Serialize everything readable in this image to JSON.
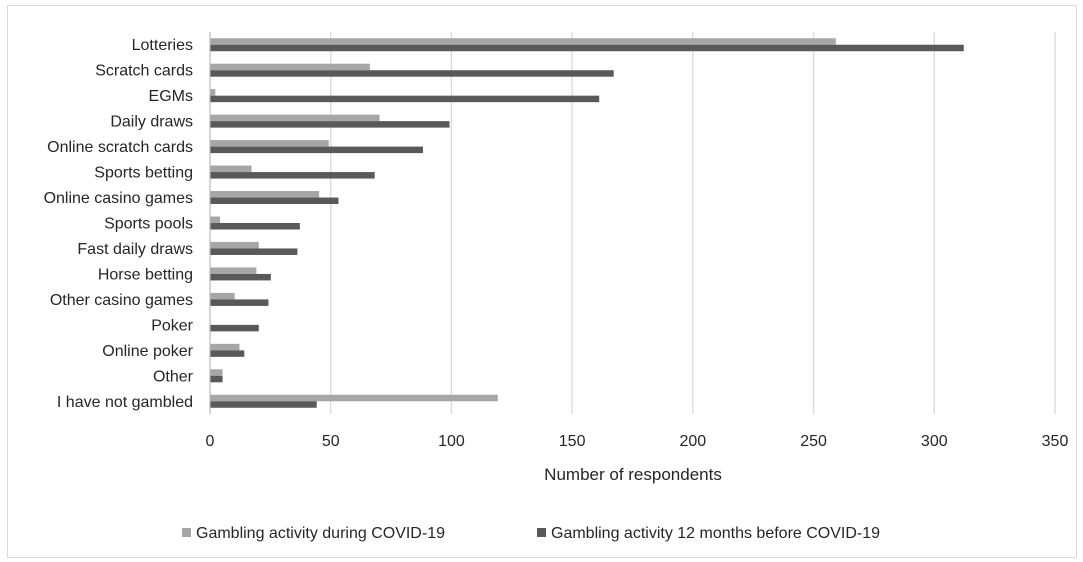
{
  "chart_data": {
    "type": "bar",
    "orientation": "horizontal",
    "title": "",
    "xlabel": "Number of respondents",
    "ylabel": "",
    "xlim": [
      0,
      350
    ],
    "x_ticks": [
      0,
      50,
      100,
      150,
      200,
      250,
      300,
      350
    ],
    "grid": "vertical",
    "legend_position": "bottom",
    "categories": [
      "Lotteries",
      "Scratch cards",
      "EGMs",
      "Daily draws",
      "Online scratch cards",
      "Sports betting",
      "Online casino games",
      "Sports pools",
      "Fast daily draws",
      "Horse betting",
      "Other casino games",
      "Poker",
      "Online poker",
      "Other",
      "I have not gambled"
    ],
    "series": [
      {
        "name": "Gambling activity during COVID-19",
        "color": "#a6a6a6",
        "values": [
          259,
          66,
          2,
          70,
          49,
          17,
          45,
          4,
          20,
          19,
          10,
          0,
          12,
          5,
          119
        ]
      },
      {
        "name": "Gambling activity 12 months before COVID-19",
        "color": "#595959",
        "values": [
          312,
          167,
          161,
          99,
          88,
          68,
          53,
          37,
          36,
          25,
          24,
          20,
          14,
          5,
          44
        ]
      }
    ],
    "gridline_color": "#d9d9d9"
  }
}
